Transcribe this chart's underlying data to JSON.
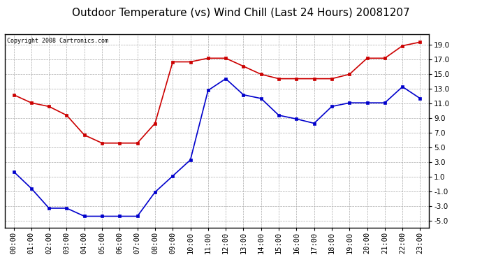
{
  "title": "Outdoor Temperature (vs) Wind Chill (Last 24 Hours) 20081207",
  "copyright_text": "Copyright 2008 Cartronics.com",
  "hours": [
    "00:00",
    "01:00",
    "02:00",
    "03:00",
    "04:00",
    "05:00",
    "06:00",
    "07:00",
    "08:00",
    "09:00",
    "10:00",
    "11:00",
    "12:00",
    "13:00",
    "14:00",
    "15:00",
    "16:00",
    "17:00",
    "18:00",
    "19:00",
    "20:00",
    "21:00",
    "22:00",
    "23:00"
  ],
  "outdoor_temp": [
    12.2,
    11.1,
    10.6,
    9.4,
    6.7,
    5.6,
    5.6,
    5.6,
    8.3,
    16.7,
    16.7,
    17.2,
    17.2,
    16.1,
    15.0,
    14.4,
    14.4,
    14.4,
    14.4,
    15.0,
    17.2,
    17.2,
    18.9,
    19.4
  ],
  "wind_chill": [
    1.7,
    -0.6,
    -3.3,
    -3.3,
    -4.4,
    -4.4,
    -4.4,
    -4.4,
    -1.1,
    1.1,
    3.3,
    12.8,
    14.4,
    12.2,
    11.7,
    9.4,
    8.9,
    8.3,
    10.6,
    11.1,
    11.1,
    11.1,
    13.3,
    11.7
  ],
  "temp_color": "#cc0000",
  "wind_chill_color": "#0000cc",
  "bg_color": "#ffffff",
  "plot_bg_color": "#ffffff",
  "grid_color": "#aaaaaa",
  "ylim": [
    -6.0,
    20.5
  ],
  "yticks": [
    -5.0,
    -3.0,
    -1.0,
    1.0,
    3.0,
    5.0,
    7.0,
    9.0,
    11.0,
    13.0,
    15.0,
    17.0,
    19.0
  ],
  "title_fontsize": 11,
  "copyright_fontsize": 6,
  "tick_fontsize": 7.5,
  "line_width": 1.2,
  "marker": "s",
  "marker_size": 3.5
}
